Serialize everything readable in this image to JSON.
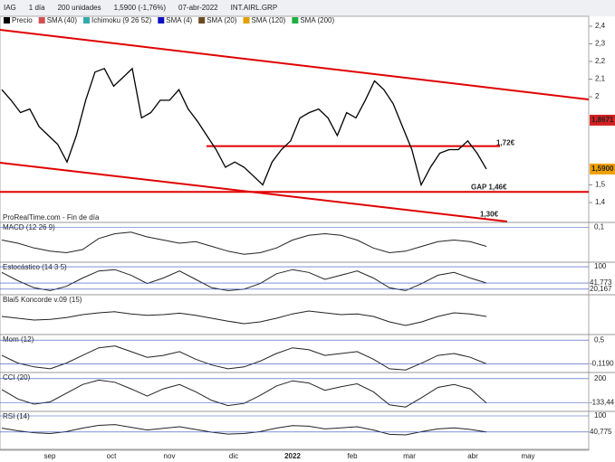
{
  "toolbar": {
    "symbol": "IAG",
    "period": "1 día",
    "units": "200 unidades",
    "quote": "1,5900 (-1,76%)",
    "date": "07-abr-2022",
    "name": "INT.AIRL.GRP"
  },
  "legend": [
    "Precio",
    "SMA (40)",
    "Ichimoku (9 26 52)",
    "SMA (4)",
    "SMA (20)",
    "SMA (120)",
    "SMA (200)"
  ],
  "source": "ProRealTime.com - Fin de día",
  "main": {
    "ylim": [
      1.26,
      2.42
    ],
    "yticks": [
      {
        "value": 2.4,
        "label": "2,4"
      },
      {
        "value": 2.3,
        "label": "2,3"
      },
      {
        "value": 2.2,
        "label": "2,2"
      },
      {
        "value": 2.1,
        "label": "2,1"
      },
      {
        "value": 2,
        "label": "2"
      },
      {
        "value": 1.5,
        "label": "1,5"
      },
      {
        "value": 1.4,
        "label": "1,4"
      }
    ],
    "close": [
      2.04,
      1.98,
      1.91,
      1.93,
      1.83,
      1.78,
      1.73,
      1.63,
      1.78,
      1.98,
      2.14,
      2.16,
      2.06,
      2.11,
      2.16,
      1.88,
      1.91,
      1.98,
      1.98,
      2.04,
      1.93,
      1.86,
      1.78,
      1.7,
      1.6,
      1.63,
      1.6,
      1.55,
      1.5,
      1.63,
      1.7,
      1.75,
      1.88,
      1.91,
      1.93,
      1.88,
      1.78,
      1.91,
      1.88,
      1.98,
      2.09,
      2.04,
      1.96,
      1.83,
      1.7,
      1.5,
      1.6,
      1.68,
      1.7,
      1.7,
      1.75,
      1.68,
      1.59
    ],
    "badges": [
      {
        "value": 1.8671,
        "label": "1,8671",
        "color": "#d42020"
      },
      {
        "value": 1.59,
        "label": "1,5900",
        "color": "#f0a000"
      }
    ],
    "levels": [
      {
        "value": 1.72,
        "label": "1,72€"
      },
      {
        "value": 1.46,
        "label": "GAP 1,46€"
      },
      {
        "value": 1.3,
        "label": "1,30€"
      }
    ]
  },
  "months": [
    "sep",
    "oct",
    "nov",
    "dic",
    "2022",
    "feb",
    "mar",
    "abr",
    "may"
  ],
  "panels": [
    {
      "title": "MACD (12 26 9)",
      "ylim": [
        -0.12,
        0.12
      ],
      "ticks": [
        {
          "value": 0.1,
          "label": "0,1"
        }
      ],
      "values": [
        0.02,
        0.0,
        -0.03,
        -0.05,
        -0.06,
        -0.04,
        0.03,
        0.06,
        0.07,
        0.04,
        0.02,
        0.0,
        0.01,
        -0.02,
        -0.05,
        -0.07,
        -0.06,
        -0.03,
        0.02,
        0.05,
        0.06,
        0.05,
        0.02,
        -0.03,
        -0.06,
        -0.05,
        -0.02,
        0.01,
        0.02,
        0.01,
        -0.02
      ]
    },
    {
      "title": "Estocástico (14 3 5)",
      "ylim": [
        0,
        110
      ],
      "ticks": [
        {
          "value": 100,
          "label": "100"
        }
      ],
      "values": [
        80,
        50,
        25,
        15,
        30,
        60,
        85,
        90,
        70,
        40,
        60,
        85,
        55,
        25,
        15,
        20,
        40,
        75,
        90,
        80,
        55,
        70,
        85,
        60,
        25,
        15,
        40,
        70,
        80,
        60,
        42
      ],
      "marks": [
        {
          "value": 41.773,
          "label": "41,773"
        },
        {
          "value": 20.167,
          "label": "20,167"
        }
      ]
    },
    {
      "title": "Blai5 Koncorde v.09 (15)",
      "ylim": [
        -40,
        60
      ],
      "ticks": [],
      "values": [
        5,
        0,
        -5,
        -3,
        2,
        10,
        15,
        18,
        12,
        8,
        10,
        14,
        8,
        0,
        -8,
        -15,
        -10,
        0,
        12,
        20,
        15,
        10,
        12,
        5,
        -10,
        -20,
        -10,
        5,
        15,
        12,
        5
      ]
    },
    {
      "title": "Mom (12)",
      "ylim": [
        -0.3,
        0.6
      ],
      "ticks": [
        {
          "value": 0.5,
          "label": "0,5"
        }
      ],
      "values": [
        0.1,
        -0.1,
        -0.2,
        -0.25,
        -0.1,
        0.1,
        0.3,
        0.35,
        0.2,
        0.05,
        0.1,
        0.2,
        0.0,
        -0.15,
        -0.25,
        -0.2,
        -0.05,
        0.15,
        0.3,
        0.25,
        0.1,
        0.15,
        0.2,
        0.0,
        -0.25,
        -0.28,
        -0.1,
        0.1,
        0.15,
        0.05,
        -0.12
      ],
      "marks": [
        {
          "value": -0.119,
          "label": "-0,1190"
        }
      ]
    },
    {
      "title": "CCI (20)",
      "ylim": [
        -250,
        260
      ],
      "ticks": [
        {
          "value": 200,
          "label": "200"
        }
      ],
      "values": [
        50,
        -80,
        -150,
        -120,
        0,
        120,
        180,
        150,
        60,
        -40,
        60,
        120,
        20,
        -100,
        -170,
        -140,
        -30,
        100,
        170,
        140,
        40,
        90,
        130,
        20,
        -160,
        -190,
        -60,
        80,
        120,
        60,
        -133
      ],
      "marks": [
        {
          "value": -133.44,
          "label": "-133,44"
        }
      ]
    },
    {
      "title": "RSI (14)",
      "ylim": [
        0,
        110
      ],
      "ticks": [
        {
          "value": 100,
          "label": "100"
        }
      ],
      "values": [
        55,
        45,
        38,
        35,
        42,
        55,
        65,
        68,
        58,
        48,
        54,
        60,
        50,
        40,
        33,
        35,
        42,
        55,
        64,
        62,
        52,
        56,
        60,
        48,
        32,
        30,
        42,
        52,
        56,
        50,
        41
      ],
      "marks": [
        {
          "value": 40.775,
          "label": "40,775"
        }
      ]
    }
  ]
}
